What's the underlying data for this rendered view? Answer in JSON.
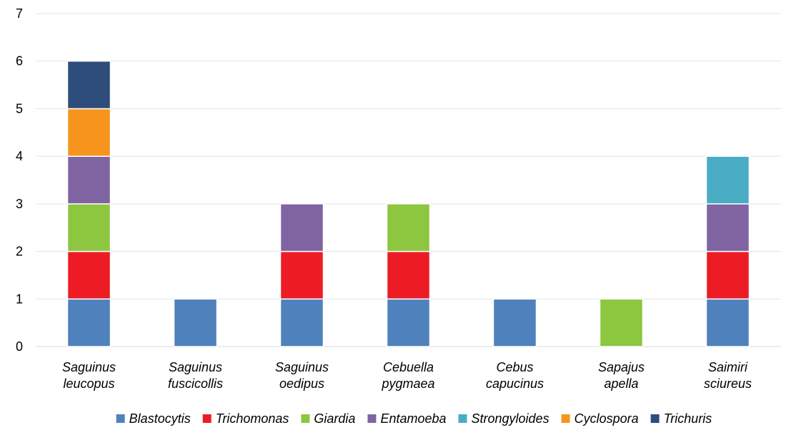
{
  "chart_data": {
    "type": "bar",
    "stacked": true,
    "title": "",
    "xlabel": "",
    "ylabel": "",
    "ylim": [
      0,
      7
    ],
    "y_ticks": [
      0,
      1,
      2,
      3,
      4,
      5,
      6,
      7
    ],
    "grid": "horizontal",
    "legend_position": "bottom",
    "categories": [
      [
        "Saguinus",
        "leucopus"
      ],
      [
        "Saguinus",
        "fuscicollis"
      ],
      [
        "Saguinus",
        "oedipus"
      ],
      [
        "Cebuella",
        "pygmaea"
      ],
      [
        "Cebus",
        "capucinus"
      ],
      [
        "Sapajus",
        "apella"
      ],
      [
        "Saimiri",
        "sciureus"
      ]
    ],
    "series": [
      {
        "name": "Blastocytis",
        "color": "#4f81bd",
        "values": [
          1,
          1,
          1,
          1,
          1,
          0,
          1
        ]
      },
      {
        "name": "Trichomonas",
        "color": "#ed1c24",
        "values": [
          1,
          0,
          1,
          1,
          0,
          0,
          1
        ]
      },
      {
        "name": "Giardia",
        "color": "#8dc63f",
        "values": [
          1,
          0,
          0,
          1,
          0,
          1,
          0
        ]
      },
      {
        "name": "Entamoeba",
        "color": "#8064a2",
        "values": [
          1,
          0,
          1,
          0,
          0,
          0,
          1
        ]
      },
      {
        "name": "Strongyloides",
        "color": "#4bacc6",
        "values": [
          0,
          0,
          0,
          0,
          0,
          0,
          1
        ]
      },
      {
        "name": "Cyclospora",
        "color": "#f7941d",
        "values": [
          1,
          0,
          0,
          0,
          0,
          0,
          0
        ]
      },
      {
        "name": "Trichuris",
        "color": "#2e4d7b",
        "values": [
          1,
          0,
          0,
          0,
          0,
          0,
          0
        ]
      }
    ]
  }
}
